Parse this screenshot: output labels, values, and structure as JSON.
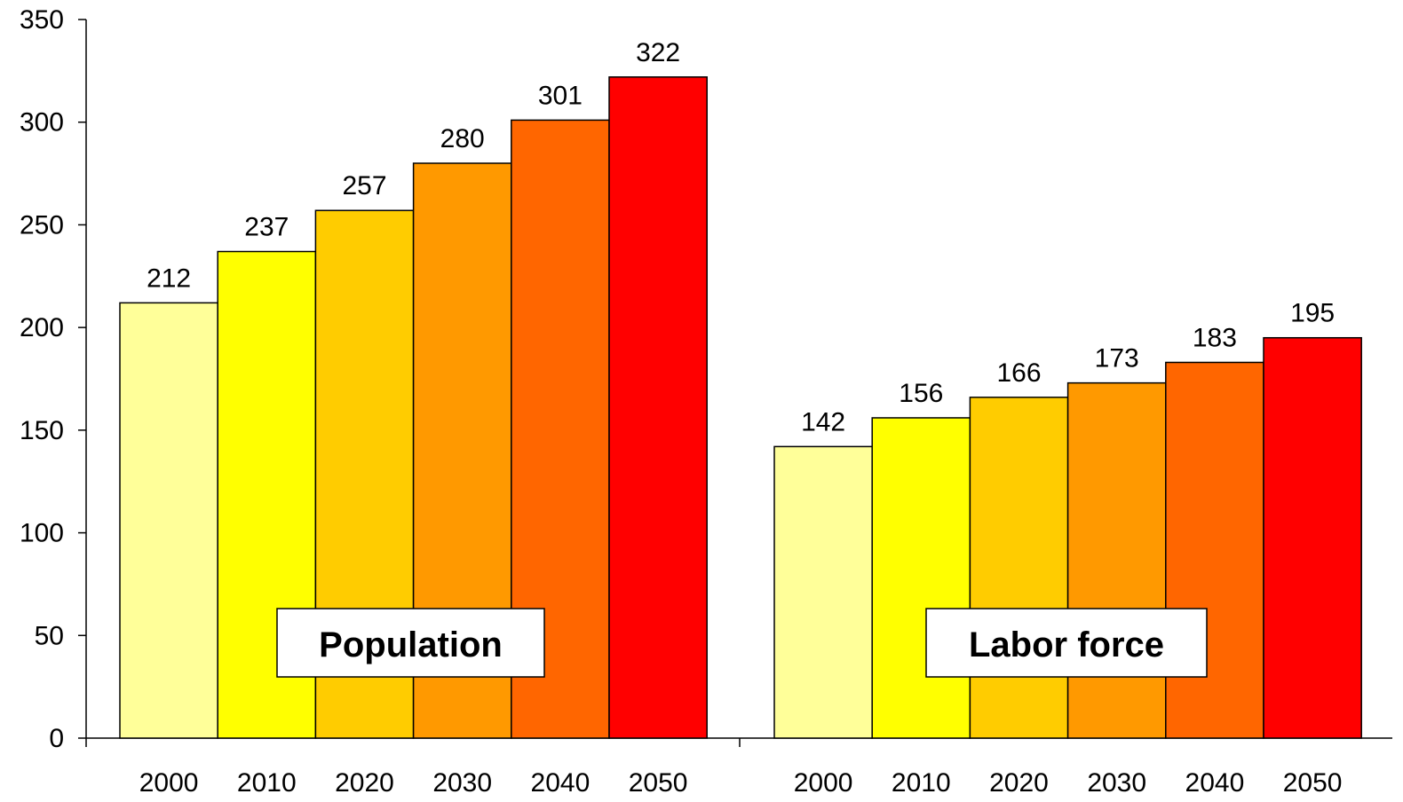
{
  "chart_data": {
    "type": "bar",
    "title": "",
    "xlabel": "",
    "ylabel": "",
    "ylim": [
      0,
      350
    ],
    "yticks": [
      "0",
      "50",
      "100",
      "150",
      "200",
      "250",
      "300",
      "350"
    ],
    "grid": false,
    "groups": [
      {
        "label": "Population",
        "categories": [
          "2000",
          "2010",
          "2020",
          "2030",
          "2040",
          "2050"
        ],
        "values": [
          212,
          237,
          257,
          280,
          301,
          322
        ]
      },
      {
        "label": "Labor force",
        "categories": [
          "2000",
          "2010",
          "2020",
          "2030",
          "2040",
          "2050"
        ],
        "values": [
          142,
          156,
          166,
          173,
          183,
          195
        ]
      }
    ],
    "colors": [
      "#FFFF99",
      "#FFFF00",
      "#FFCC00",
      "#FF9900",
      "#FF6600",
      "#FF0000"
    ]
  }
}
